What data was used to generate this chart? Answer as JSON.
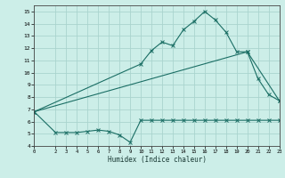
{
  "xlabel": "Humidex (Indice chaleur)",
  "background_color": "#cceee8",
  "grid_color": "#aad4ce",
  "line_color": "#1a6e64",
  "xlim": [
    0,
    23
  ],
  "ylim": [
    4,
    15.5
  ],
  "xticks": [
    0,
    2,
    3,
    4,
    5,
    6,
    7,
    8,
    9,
    10,
    11,
    12,
    13,
    14,
    15,
    16,
    17,
    18,
    19,
    20,
    21,
    22,
    23
  ],
  "yticks": [
    4,
    5,
    6,
    7,
    8,
    9,
    10,
    11,
    12,
    13,
    14,
    15
  ],
  "line1_x": [
    0,
    2,
    3,
    4,
    5,
    6,
    7,
    8,
    9,
    10,
    11,
    12,
    13,
    14,
    15,
    16,
    17,
    18,
    19,
    20,
    21,
    22,
    23
  ],
  "line1_y": [
    6.8,
    5.1,
    5.1,
    5.1,
    5.2,
    5.3,
    5.2,
    4.9,
    4.3,
    6.1,
    6.1,
    6.1,
    6.1,
    6.1,
    6.1,
    6.1,
    6.1,
    6.1,
    6.1,
    6.1,
    6.1,
    6.1,
    6.1
  ],
  "line2_x": [
    0,
    10,
    11,
    12,
    13,
    14,
    15,
    16,
    17,
    18,
    19,
    20,
    21,
    22,
    23
  ],
  "line2_y": [
    6.8,
    10.7,
    11.8,
    12.5,
    12.2,
    13.5,
    14.2,
    15.0,
    14.3,
    13.3,
    11.7,
    11.7,
    9.5,
    8.2,
    7.7
  ],
  "line3_x": [
    0,
    20,
    23
  ],
  "line3_y": [
    6.8,
    11.7,
    7.7
  ]
}
